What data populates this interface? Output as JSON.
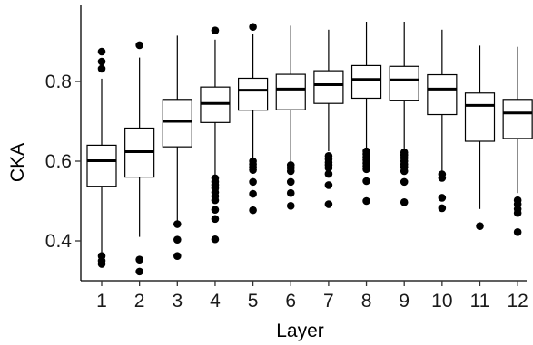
{
  "chart_data": {
    "type": "box",
    "xlabel": "Layer",
    "ylabel": "CKA",
    "ylim": [
      0.3,
      0.97
    ],
    "yticks": [
      0.4,
      0.6,
      0.8
    ],
    "ytick_labels": [
      "0.4",
      "0.6",
      "0.8"
    ],
    "grid": false,
    "categories": [
      "1",
      "2",
      "3",
      "4",
      "5",
      "6",
      "7",
      "8",
      "9",
      "10",
      "11",
      "12"
    ],
    "boxes": [
      {
        "layer": "1",
        "whisker_low": 0.37,
        "q1": 0.537,
        "median": 0.601,
        "q3": 0.64,
        "whisker_high": 0.807,
        "outliers": [
          0.875,
          0.85,
          0.832,
          0.362,
          0.35,
          0.342
        ]
      },
      {
        "layer": "2",
        "whisker_low": 0.41,
        "q1": 0.56,
        "median": 0.624,
        "q3": 0.683,
        "whisker_high": 0.86,
        "outliers": [
          0.891,
          0.353,
          0.323
        ]
      },
      {
        "layer": "3",
        "whisker_low": 0.445,
        "q1": 0.636,
        "median": 0.7,
        "q3": 0.755,
        "whisker_high": 0.915,
        "outliers": [
          0.442,
          0.403,
          0.362
        ]
      },
      {
        "layer": "4",
        "whisker_low": 0.565,
        "q1": 0.697,
        "median": 0.745,
        "q3": 0.786,
        "whisker_high": 0.905,
        "outliers": [
          0.928,
          0.557,
          0.548,
          0.54,
          0.532,
          0.522,
          0.512,
          0.502,
          0.478,
          0.455,
          0.404
        ]
      },
      {
        "layer": "5",
        "whisker_low": 0.605,
        "q1": 0.728,
        "median": 0.778,
        "q3": 0.808,
        "whisker_high": 0.92,
        "outliers": [
          0.937,
          0.6,
          0.592,
          0.585,
          0.578,
          0.548,
          0.518,
          0.477
        ]
      },
      {
        "layer": "6",
        "whisker_low": 0.595,
        "q1": 0.729,
        "median": 0.781,
        "q3": 0.818,
        "whisker_high": 0.94,
        "outliers": [
          0.59,
          0.583,
          0.575,
          0.548,
          0.52,
          0.488
        ]
      },
      {
        "layer": "7",
        "whisker_low": 0.625,
        "q1": 0.745,
        "median": 0.792,
        "q3": 0.827,
        "whisker_high": 0.93,
        "outliers": [
          0.613,
          0.605,
          0.597,
          0.59,
          0.583,
          0.568,
          0.54,
          0.492
        ]
      },
      {
        "layer": "8",
        "whisker_low": 0.63,
        "q1": 0.758,
        "median": 0.805,
        "q3": 0.84,
        "whisker_high": 0.95,
        "outliers": [
          0.625,
          0.618,
          0.61,
          0.603,
          0.595,
          0.588,
          0.58,
          0.55,
          0.5
        ]
      },
      {
        "layer": "9",
        "whisker_low": 0.63,
        "q1": 0.753,
        "median": 0.804,
        "q3": 0.838,
        "whisker_high": 0.95,
        "outliers": [
          0.622,
          0.615,
          0.608,
          0.6,
          0.592,
          0.585,
          0.575,
          0.548,
          0.497
        ]
      },
      {
        "layer": "10",
        "whisker_low": 0.575,
        "q1": 0.717,
        "median": 0.781,
        "q3": 0.817,
        "whisker_high": 0.93,
        "outliers": [
          0.567,
          0.558,
          0.508,
          0.482
        ]
      },
      {
        "layer": "11",
        "whisker_low": 0.48,
        "q1": 0.65,
        "median": 0.74,
        "q3": 0.771,
        "whisker_high": 0.89,
        "outliers": [
          0.437
        ]
      },
      {
        "layer": "12",
        "whisker_low": 0.52,
        "q1": 0.657,
        "median": 0.721,
        "q3": 0.755,
        "whisker_high": 0.887,
        "outliers": [
          0.502,
          0.492,
          0.48,
          0.47,
          0.422
        ]
      }
    ]
  }
}
